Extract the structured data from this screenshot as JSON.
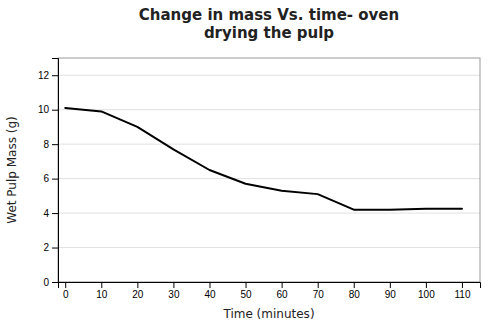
{
  "chart_data": {
    "type": "line",
    "title": "Change in mass Vs. time- oven\ndrying the pulp",
    "xlabel": "Time (minutes)",
    "ylabel": "Wet Pulp Mass (g)",
    "x": [
      0,
      10,
      20,
      30,
      40,
      50,
      60,
      70,
      80,
      90,
      100,
      110
    ],
    "values": [
      10.1,
      9.9,
      9.0,
      7.7,
      6.5,
      5.7,
      5.3,
      5.1,
      4.2,
      4.2,
      4.25,
      4.25
    ],
    "color": "#000000",
    "xlim": [
      -2,
      115
    ],
    "ylim": [
      0,
      13
    ],
    "xticks": [
      0,
      10,
      20,
      30,
      40,
      50,
      60,
      70,
      80,
      90,
      100,
      110
    ],
    "yticks": [
      0,
      2,
      4,
      6,
      8,
      10,
      12
    ],
    "grid": true
  }
}
